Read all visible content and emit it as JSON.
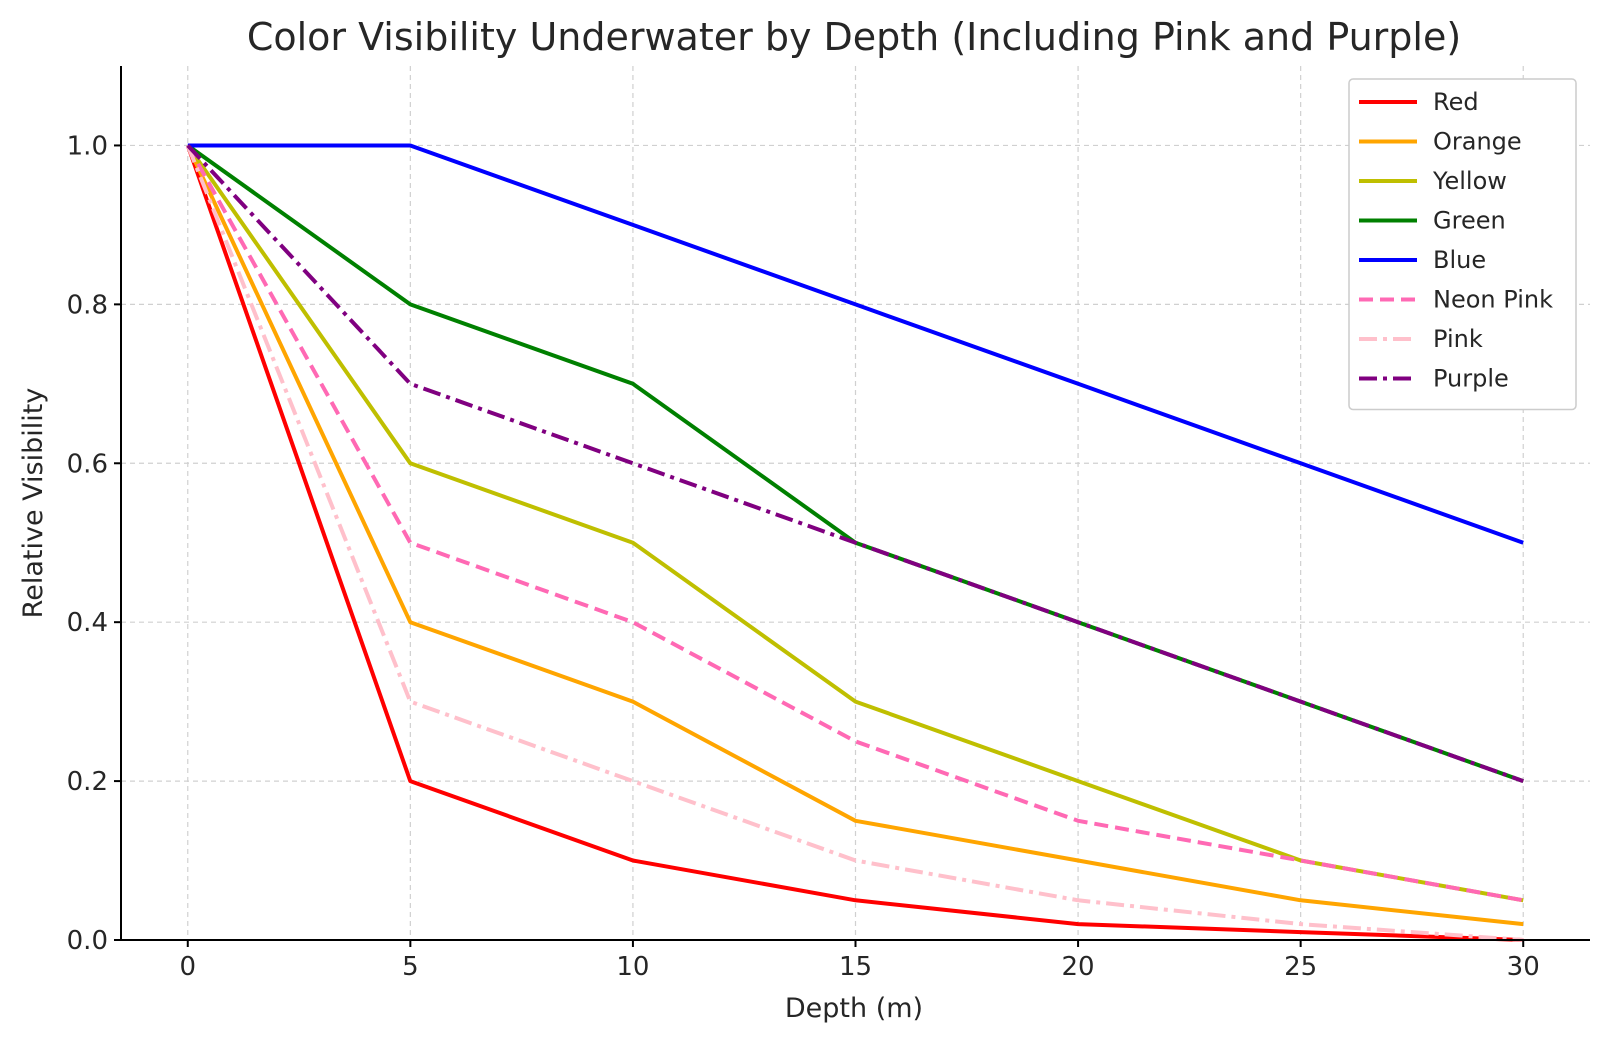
{
  "chart_data": {
    "type": "line",
    "title": "Color Visibility Underwater by Depth (Including Pink and Purple)",
    "xlabel": "Depth (m)",
    "ylabel": "Relative Visibility",
    "x": [
      0,
      5,
      10,
      15,
      20,
      25,
      30
    ],
    "xlim": [
      -1.5,
      31.5
    ],
    "ylim": [
      0,
      1.1
    ],
    "xticks": [
      0,
      5,
      10,
      15,
      20,
      25,
      30
    ],
    "yticks": [
      0.0,
      0.2,
      0.4,
      0.6,
      0.8,
      1.0
    ],
    "xtick_labels": [
      "0",
      "5",
      "10",
      "15",
      "20",
      "25",
      "30"
    ],
    "ytick_labels": [
      "0.0",
      "0.2",
      "0.4",
      "0.6",
      "0.8",
      "1.0"
    ],
    "grid": true,
    "legend_position": "top-right",
    "series": [
      {
        "name": "Red",
        "color": "#ff0000",
        "style": "solid",
        "values": [
          1.0,
          0.2,
          0.1,
          0.05,
          0.02,
          0.01,
          0.0
        ]
      },
      {
        "name": "Orange",
        "color": "#ffa500",
        "style": "solid",
        "values": [
          1.0,
          0.4,
          0.3,
          0.15,
          0.1,
          0.05,
          0.02
        ]
      },
      {
        "name": "Yellow",
        "color": "#bfbf00",
        "style": "solid",
        "values": [
          1.0,
          0.6,
          0.5,
          0.3,
          0.2,
          0.1,
          0.05
        ]
      },
      {
        "name": "Green",
        "color": "#008000",
        "style": "solid",
        "values": [
          1.0,
          0.8,
          0.7,
          0.5,
          0.4,
          0.3,
          0.2
        ]
      },
      {
        "name": "Blue",
        "color": "#0000ff",
        "style": "solid",
        "values": [
          1.0,
          1.0,
          0.9,
          0.8,
          0.7,
          0.6,
          0.5
        ]
      },
      {
        "name": "Neon Pink",
        "color": "#ff69b4",
        "style": "dashed",
        "values": [
          1.0,
          0.5,
          0.4,
          0.25,
          0.15,
          0.1,
          0.05
        ]
      },
      {
        "name": "Pink",
        "color": "#ffc0cb",
        "style": "dashdot",
        "values": [
          1.0,
          0.3,
          0.2,
          0.1,
          0.05,
          0.02,
          0.0
        ]
      },
      {
        "name": "Purple",
        "color": "#800080",
        "style": "dashdot",
        "values": [
          1.0,
          0.7,
          0.6,
          0.5,
          0.4,
          0.3,
          0.2
        ]
      }
    ]
  }
}
